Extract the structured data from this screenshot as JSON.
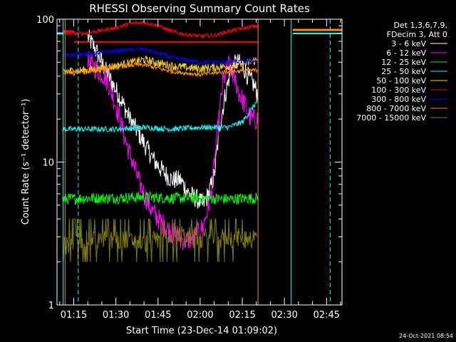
{
  "chart_data": {
    "type": "line",
    "title": "RHESSI Observing Summary Count Rates",
    "xlabel": "Start Time (23-Dec-14 01:09:02)",
    "ylabel": "Count Rate (s⁻¹ detector⁻¹)",
    "y_scale": "log",
    "ylim": [
      1,
      100
    ],
    "xlim_minutes": [
      69.03,
      170.5
    ],
    "x_ticks": [
      {
        "label": "01:15",
        "minute": 75
      },
      {
        "label": "01:30",
        "minute": 90
      },
      {
        "label": "01:45",
        "minute": 105
      },
      {
        "label": "02:00",
        "minute": 120
      },
      {
        "label": "02:15",
        "minute": 135
      },
      {
        "label": "02:30",
        "minute": 150
      },
      {
        "label": "02:45",
        "minute": 165
      }
    ],
    "y_ticks": [
      {
        "label": "1",
        "value": 1
      },
      {
        "label": "10",
        "value": 10
      },
      {
        "label": "100",
        "value": 100
      }
    ],
    "legend": {
      "placement": "top-right",
      "header": [
        "Det 1,3,6,7,9,",
        "FDecim 3, Att 0"
      ]
    },
    "series": [
      {
        "name": "3 - 6 keV",
        "color": "#ffffff",
        "noise": 0.07,
        "x": [
          80,
          82,
          84,
          86,
          88,
          90,
          92,
          95,
          98,
          101,
          104,
          107,
          110,
          113,
          116,
          119,
          121,
          123,
          125,
          127,
          129,
          131,
          133,
          135,
          137,
          139,
          140.5
        ],
        "y": [
          75,
          65,
          55,
          45,
          38,
          32,
          27,
          20,
          16,
          12.5,
          10,
          8.5,
          7.5,
          7.5,
          6,
          5.5,
          5,
          6,
          8,
          18,
          30,
          45,
          50,
          48,
          40,
          35,
          30
        ]
      },
      {
        "name": "6 - 12 keV",
        "color": "#ff00ff",
        "noise": 0.08,
        "x": [
          80,
          83,
          86,
          88,
          90,
          92,
          94,
          96,
          98,
          100,
          103,
          106,
          109,
          112,
          115,
          118,
          121,
          124,
          126,
          128,
          130,
          132,
          134,
          136,
          138,
          140.5
        ],
        "y": [
          50,
          45,
          40,
          33,
          25,
          18,
          13,
          10,
          7.5,
          6,
          4.5,
          3.8,
          3.3,
          3,
          2.8,
          3,
          3.5,
          6,
          15,
          35,
          48,
          40,
          30,
          25,
          20,
          20
        ]
      },
      {
        "name": "12 - 25 keV",
        "color": "#00ff00",
        "noise": 0.04,
        "x": [
          71,
          80,
          90,
          100,
          110,
          120,
          130,
          140.5
        ],
        "y": [
          5.5,
          5.6,
          5.6,
          5.7,
          5.6,
          5.6,
          5.5,
          5.6
        ]
      },
      {
        "name": "25 - 50 keV",
        "color": "#00ffff",
        "noise": 0.02,
        "x": [
          71,
          80,
          90,
          100,
          110,
          120,
          130,
          135,
          138,
          140.5
        ],
        "y": [
          17,
          17,
          17,
          17.5,
          17,
          17.5,
          17.5,
          19,
          23,
          27
        ]
      },
      {
        "name": "50 - 100 keV",
        "color": "#ffd700",
        "noise": 0.03,
        "x": [
          71,
          80,
          90,
          100,
          110,
          120,
          130,
          135,
          140.5
        ],
        "y": [
          43,
          44,
          47,
          52,
          47,
          45,
          47,
          48,
          52
        ]
      },
      {
        "name": "100 - 300 keV",
        "color": "#ff0000",
        "noise": 0.015,
        "x": [
          71,
          80,
          90,
          95,
          100,
          105,
          110,
          115,
          120,
          125,
          130,
          135,
          140.5
        ],
        "y": [
          79,
          80,
          87,
          93,
          95,
          90,
          82,
          78,
          76,
          77,
          82,
          86,
          90
        ]
      },
      {
        "name": "300 - 800 keV",
        "color": "#0000ff",
        "noise": 0.015,
        "x": [
          71,
          80,
          90,
          100,
          110,
          120,
          130,
          140.5
        ],
        "y": [
          56,
          57,
          60,
          62,
          54,
          50,
          50,
          51
        ]
      },
      {
        "name": "800 - 7000 keV",
        "color": "#ff8c00",
        "noise": 0.015,
        "x": [
          71,
          80,
          90,
          100,
          110,
          120,
          130,
          140.5
        ],
        "y": [
          42,
          43,
          47,
          48,
          43,
          41,
          43,
          44
        ]
      },
      {
        "name": "7000 - 15000 keV",
        "color": "#808000",
        "noise": 0.0,
        "x": [
          71,
          80,
          90,
          100,
          110,
          120,
          130,
          140.5
        ],
        "y": [
          2.5,
          2.9,
          3.0,
          2.7,
          3.2,
          3.0,
          3.0,
          3.0
        ]
      }
    ]
  },
  "footer": {
    "timestamp": "24-Oct-2021 08:54"
  }
}
